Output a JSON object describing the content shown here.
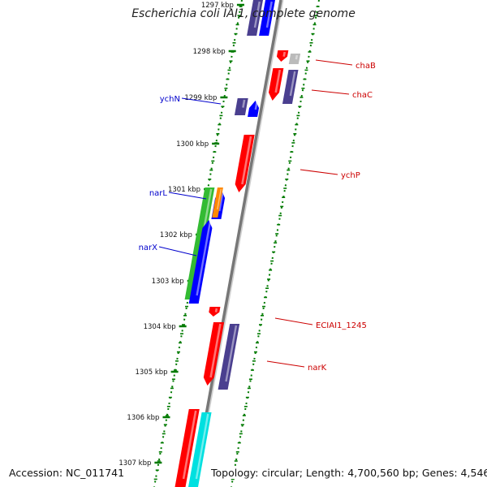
{
  "title": "Escherichia coli IAI1, complete genome",
  "footer": {
    "accession": "Accession: NC_011741",
    "summary": "Topology: circular; Length: 4,700,560 bp; Genes: 4,546"
  },
  "colors": {
    "backbone": "#777777",
    "tick": "#007a00",
    "gene_label_right": "#cc0000",
    "gene_label_left": "#0000cc",
    "red": "#ff0000",
    "navy": "#4a3f8f",
    "blue": "#0000ff",
    "green": "#33bb33",
    "orange": "#ff8800",
    "cyan": "#00e0e0",
    "grey": "#bbbbbb"
  },
  "kbp_labels": [
    "1297 kbp",
    "1298 kbp",
    "1299 kbp",
    "1300 kbp",
    "1301 kbp",
    "1302 kbp",
    "1303 kbp",
    "1304 kbp",
    "1305 kbp",
    "1306 kbp",
    "1307 kbp"
  ],
  "gene_labels_right": [
    "chaB",
    "chaC",
    "ychP",
    "ECIAI1_1245",
    "narK"
  ],
  "gene_labels_left": [
    "ychN",
    "narL",
    "narX"
  ]
}
